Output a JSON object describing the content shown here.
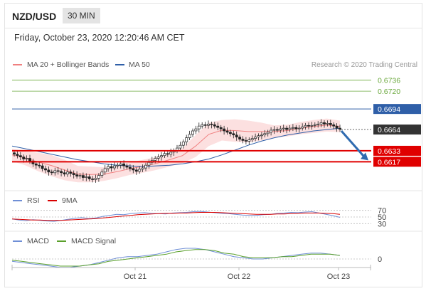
{
  "header": {
    "symbol": "NZD/USD",
    "timeframe": "30 MIN"
  },
  "datetime": "Friday, October 23, 2020 12:20:46 AM CET",
  "copyright": "Research © 2020 Trading Central",
  "colors": {
    "bollinger": "#f08080",
    "ma50": "#2f5fa8",
    "target": "#6aa83c",
    "support": "#e00000",
    "current": "#333333",
    "arrow": "#2f6bb0",
    "rsi": "#6f8fd6",
    "rsi_ma": "#d90000",
    "macd": "#6f8fd6",
    "macd_signal": "#5aa02c"
  },
  "chart_data": [
    {
      "type": "candlestick",
      "name": "price",
      "legend": [
        {
          "label": "MA 20 + Bollinger Bands",
          "color": "#f08080"
        },
        {
          "label": "MA 50",
          "color": "#2f5fa8"
        }
      ],
      "x_ticks": [
        "Oct 21",
        "Oct 22",
        "Oct 23"
      ],
      "ylim": [
        0.658,
        0.6745
      ],
      "levels": [
        {
          "value": 0.6736,
          "label": "0.6736",
          "role": "target"
        },
        {
          "value": 0.672,
          "label": "0.6720",
          "role": "target"
        },
        {
          "value": 0.6694,
          "label": "0.6694",
          "role": "ma50-level"
        },
        {
          "value": 0.6664,
          "label": "0.6664",
          "role": "current"
        },
        {
          "value": 0.6633,
          "label": "0.6633",
          "role": "support"
        },
        {
          "value": 0.6617,
          "label": "0.6617",
          "role": "support"
        }
      ],
      "close": [
        0.6628,
        0.6626,
        0.6624,
        0.6621,
        0.6622,
        0.6618,
        0.6614,
        0.6612,
        0.6611,
        0.6607,
        0.6605,
        0.6602,
        0.6601,
        0.6604,
        0.6603,
        0.6601,
        0.6599,
        0.6602,
        0.66,
        0.6598,
        0.6596,
        0.6597,
        0.6594,
        0.6595,
        0.6592,
        0.6591,
        0.6593,
        0.6597,
        0.6602,
        0.6607,
        0.661,
        0.6608,
        0.6611,
        0.6612,
        0.6614,
        0.6611,
        0.6609,
        0.6607,
        0.6605,
        0.6603,
        0.6606,
        0.6608,
        0.6612,
        0.6616,
        0.6619,
        0.6622,
        0.6624,
        0.6626,
        0.6629,
        0.6628,
        0.6631,
        0.6633,
        0.6637,
        0.6641,
        0.6646,
        0.6652,
        0.6657,
        0.6662,
        0.6665,
        0.6669,
        0.6671,
        0.667,
        0.6672,
        0.6671,
        0.6669,
        0.6667,
        0.6665,
        0.6662,
        0.666,
        0.6658,
        0.6656,
        0.6653,
        0.665,
        0.6648,
        0.6647,
        0.6649,
        0.6651,
        0.6653,
        0.6655,
        0.6656,
        0.6658,
        0.666,
        0.6663,
        0.6664,
        0.6663,
        0.6665,
        0.6666,
        0.6664,
        0.6666,
        0.6667,
        0.6665,
        0.6666,
        0.6668,
        0.667,
        0.6669,
        0.667,
        0.6671,
        0.6672,
        0.6674,
        0.6672,
        0.6673,
        0.6671,
        0.6669,
        0.6666,
        0.6664
      ],
      "ma50": [
        0.664,
        0.6636,
        0.6632,
        0.6628,
        0.6624,
        0.662,
        0.6617,
        0.6614,
        0.6612,
        0.6611,
        0.661,
        0.6611,
        0.6612,
        0.6614,
        0.6617,
        0.6621,
        0.6627,
        0.6634,
        0.6641,
        0.6647,
        0.6652,
        0.6656,
        0.6659,
        0.6662,
        0.6664,
        0.6666
      ],
      "bb_upper": [
        0.6636,
        0.6633,
        0.663,
        0.6627,
        0.662,
        0.6611,
        0.661,
        0.6609,
        0.6612,
        0.6616,
        0.662,
        0.6624,
        0.663,
        0.6637,
        0.6656,
        0.6674,
        0.6678,
        0.6679,
        0.6677,
        0.6674,
        0.667,
        0.6671,
        0.6675,
        0.6678,
        0.668,
        0.6677
      ],
      "bb_lower": [
        0.6618,
        0.6612,
        0.6603,
        0.6596,
        0.659,
        0.6587,
        0.6587,
        0.6589,
        0.6593,
        0.6598,
        0.6601,
        0.6605,
        0.661,
        0.6615,
        0.6624,
        0.664,
        0.6648,
        0.6646,
        0.6645,
        0.6648,
        0.6652,
        0.6654,
        0.6657,
        0.6659,
        0.6661,
        0.666
      ],
      "projection": {
        "from": 0.6664,
        "to": 0.6617
      }
    },
    {
      "type": "line",
      "name": "rsi",
      "legend": [
        {
          "label": "RSI",
          "color": "#6f8fd6"
        },
        {
          "label": "9MA",
          "color": "#d90000"
        }
      ],
      "y_ticks": [
        "70",
        "50",
        "30"
      ],
      "ylim": [
        20,
        80
      ],
      "series": [
        {
          "name": "RSI",
          "values": [
            44,
            41,
            39,
            42,
            40,
            38,
            37,
            40,
            43,
            46,
            48,
            45,
            47,
            52,
            55,
            58,
            57,
            60,
            62,
            63,
            61,
            60,
            59,
            62,
            63,
            64,
            66,
            67,
            65,
            63,
            61,
            60,
            58,
            56,
            55,
            55,
            57,
            58,
            61,
            62,
            64,
            63,
            65,
            66,
            62,
            58,
            54,
            49
          ]
        },
        {
          "name": "9MA",
          "values": [
            44,
            43,
            42,
            41,
            41,
            40,
            40,
            40,
            41,
            42,
            43,
            44,
            45,
            47,
            49,
            51,
            53,
            55,
            57,
            58,
            59,
            60,
            61,
            61,
            62,
            62,
            63,
            64,
            64,
            64,
            63,
            62,
            61,
            60,
            59,
            58,
            58,
            58,
            59,
            59,
            60,
            61,
            62,
            62,
            62,
            61,
            60,
            58
          ]
        }
      ]
    },
    {
      "type": "line",
      "name": "macd",
      "legend": [
        {
          "label": "MACD",
          "color": "#6f8fd6"
        },
        {
          "label": "MACD Signal",
          "color": "#5aa02c"
        }
      ],
      "y_ticks": [
        "0"
      ],
      "ylim": [
        -0.0012,
        0.0012
      ],
      "series": [
        {
          "name": "MACD",
          "values": [
            -0.0002,
            -0.0003,
            -0.0004,
            -0.0005,
            -0.0006,
            -0.0007,
            -0.0007,
            -0.0006,
            -0.0005,
            -0.0003,
            -0.0001,
            0.0001,
            0.0002,
            0.0002,
            0.0003,
            0.0004,
            0.0006,
            0.0008,
            0.0009,
            0.0009,
            0.0008,
            0.0006,
            0.0004,
            0.0002,
            0.0001,
            0.0,
            0.0,
            0.0001,
            0.0002,
            0.0003,
            0.0004,
            0.0005,
            0.0005,
            0.0004,
            0.0003
          ]
        },
        {
          "name": "MACD Signal",
          "values": [
            -0.0001,
            -0.0002,
            -0.0003,
            -0.0004,
            -0.0005,
            -0.0006,
            -0.0006,
            -0.0006,
            -0.0005,
            -0.0004,
            -0.0002,
            -0.0001,
            0.0,
            0.0001,
            0.0002,
            0.0003,
            0.0004,
            0.0006,
            0.0007,
            0.0008,
            0.0008,
            0.0007,
            0.0005,
            0.0004,
            0.0002,
            0.0001,
            0.0001,
            0.0001,
            0.0002,
            0.0002,
            0.0003,
            0.0004,
            0.0004,
            0.0004,
            0.0003
          ]
        }
      ]
    }
  ]
}
